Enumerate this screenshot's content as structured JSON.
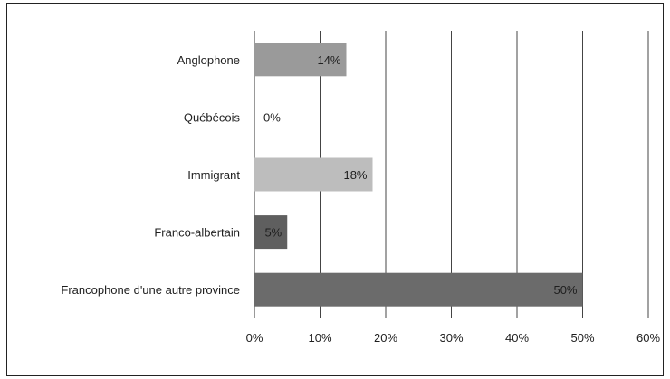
{
  "chart_data": {
    "type": "bar",
    "orientation": "horizontal",
    "categories": [
      "Anglophone",
      "Québécois",
      "Immigrant",
      "Franco-albertain",
      "Francophone d'une autre province"
    ],
    "values": [
      14,
      0,
      18,
      5,
      50
    ],
    "data_labels": [
      "14%",
      "0%",
      "18%",
      "5%",
      "50%"
    ],
    "bar_colors": [
      "#9a9a9a",
      "#b0b0b0",
      "#bdbdbd",
      "#5f5f5f",
      "#6b6b6b"
    ],
    "xlim": [
      0,
      60
    ],
    "x_ticks": [
      0,
      10,
      20,
      30,
      40,
      50,
      60
    ],
    "x_tick_labels": [
      "0%",
      "10%",
      "20%",
      "30%",
      "40%",
      "50%",
      "60%"
    ],
    "grid": "vertical",
    "legend": "none",
    "title": "",
    "xlabel": "",
    "ylabel": ""
  }
}
